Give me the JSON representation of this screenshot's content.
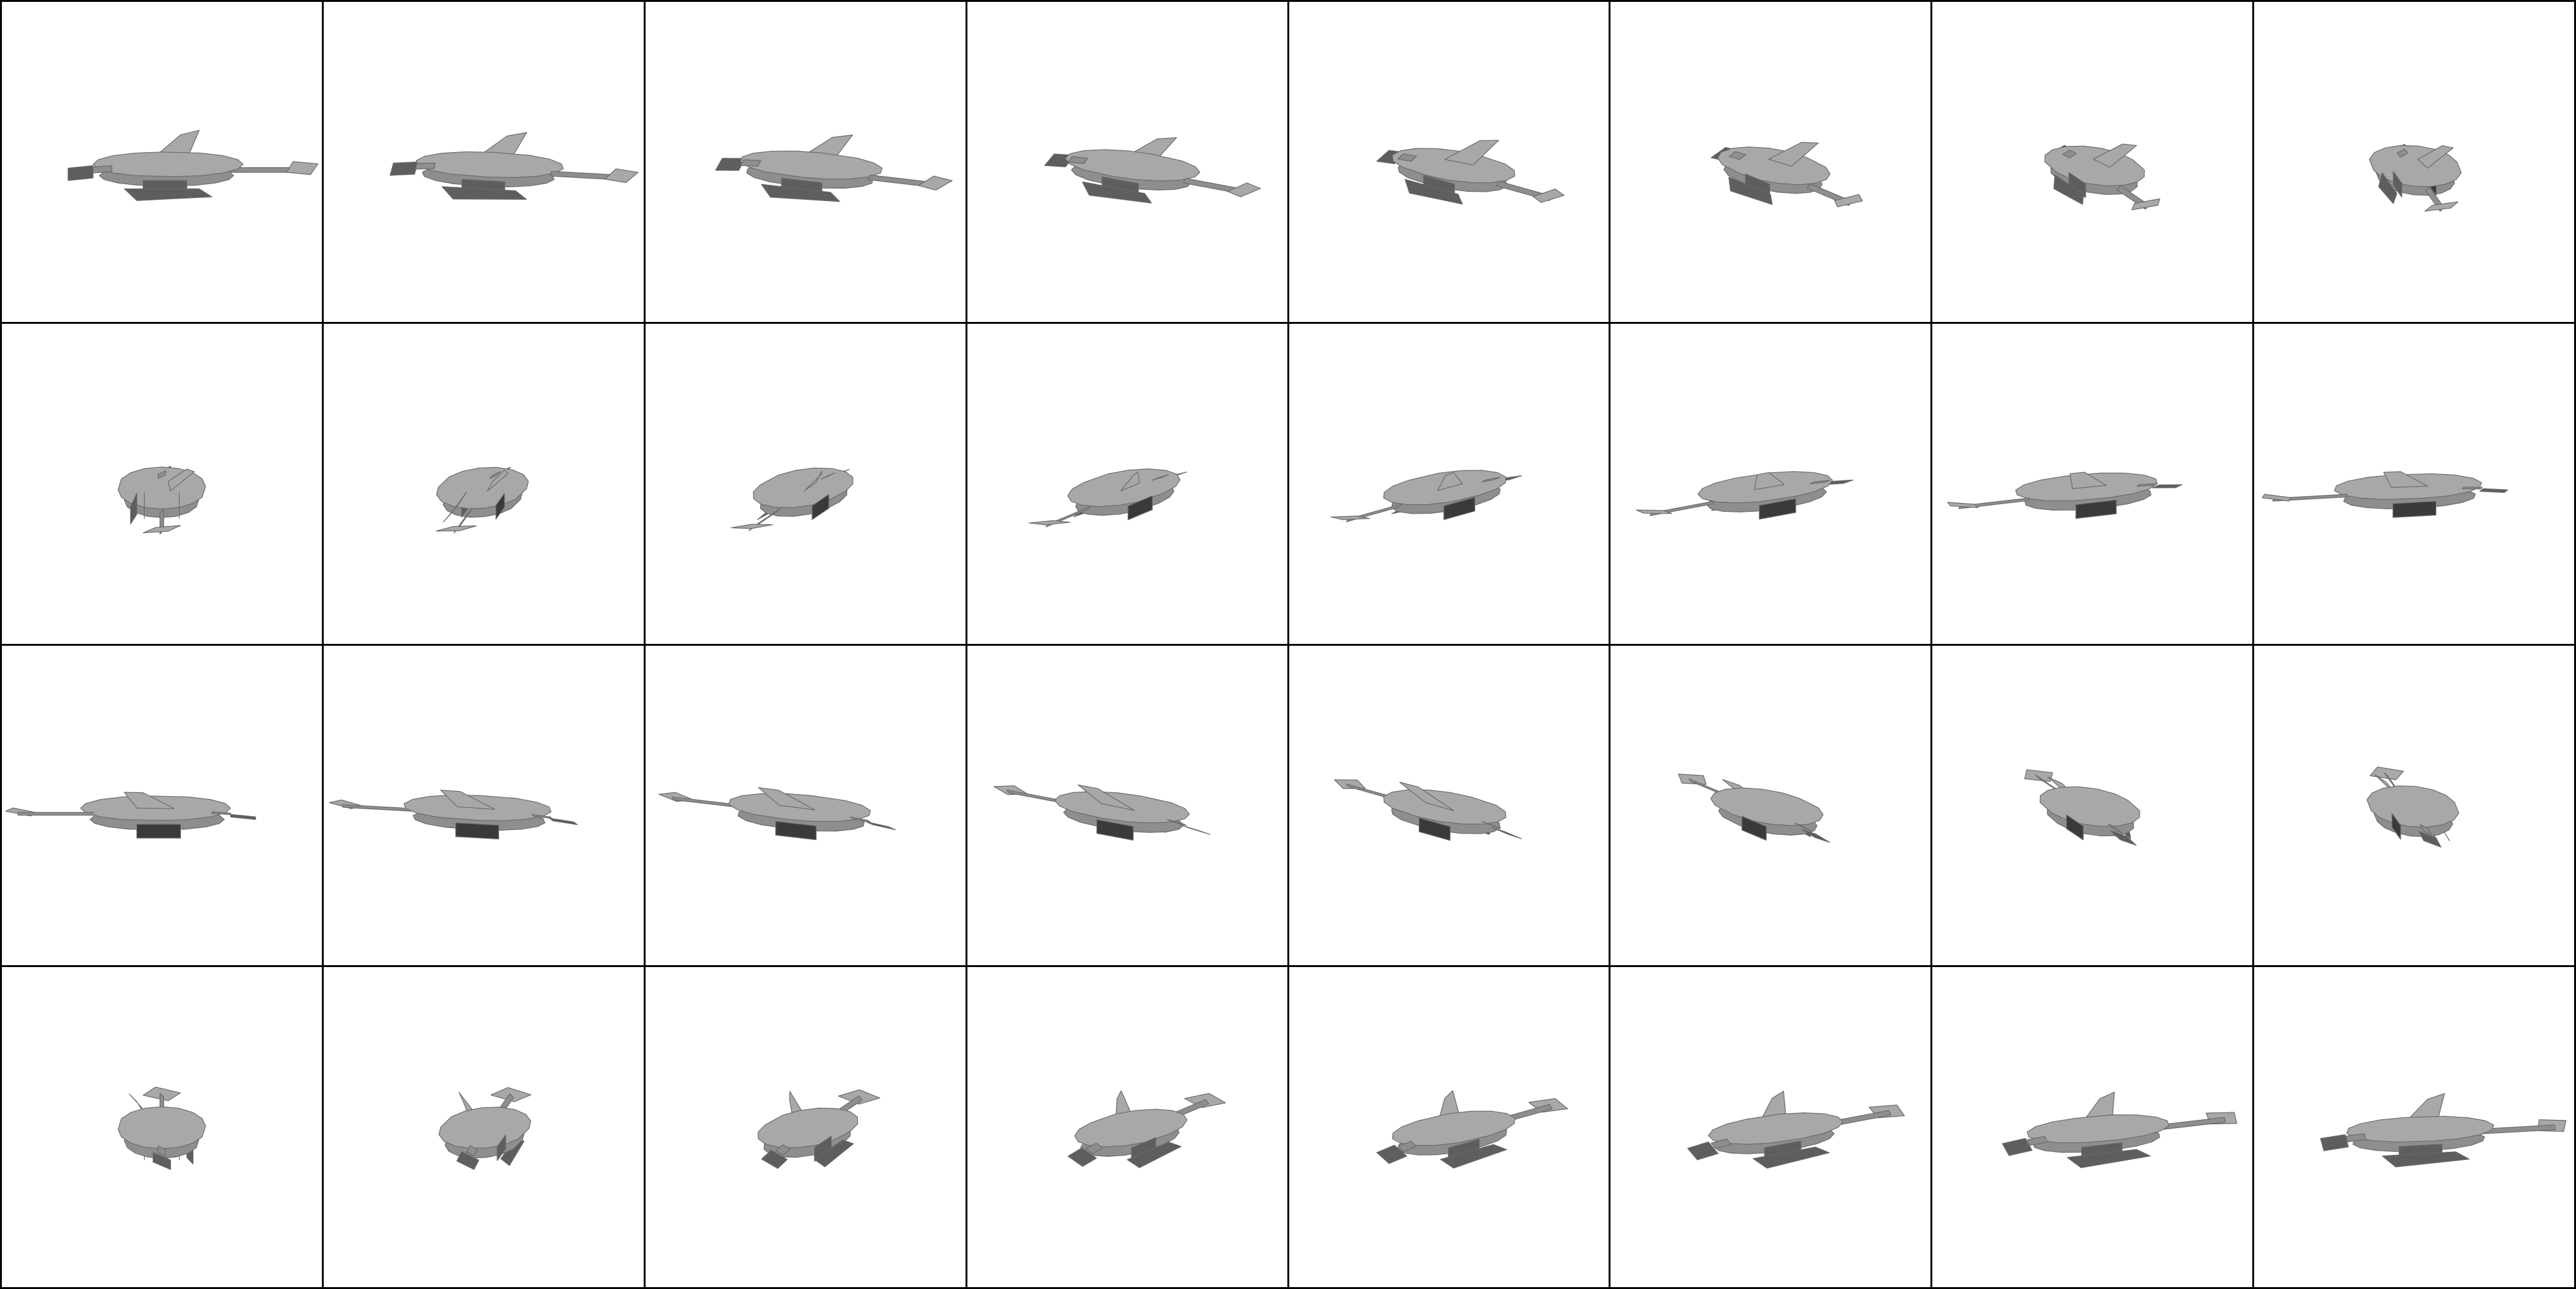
{
  "sheet": {
    "rows": 4,
    "columns": 8,
    "frame_count": 32,
    "subject": "spaceship-model",
    "rotation_step_degrees": 11.25,
    "colors": {
      "background": "#ffffff",
      "grid_line": "#000000",
      "hull_light": "#a8a8a8",
      "hull_mid": "#8e8e8e",
      "hull_dark": "#5e5e5e",
      "engine": "#3a3a3a",
      "wing_edge": "#6a6a6a"
    }
  }
}
